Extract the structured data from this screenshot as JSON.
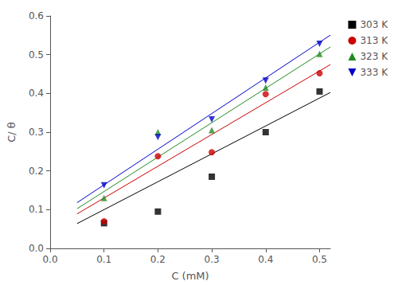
{
  "chart_data": {
    "type": "scatter",
    "xlabel": "C (mM)",
    "ylabel": "C/ θ",
    "xlim": [
      0.0,
      0.52
    ],
    "ylim": [
      0.0,
      0.6
    ],
    "xticks": [
      {
        "value": 0.0,
        "label": "0.0"
      },
      0.1,
      0.2,
      0.3,
      0.4,
      0.5
    ],
    "yticks": [
      {
        "value": 0.0,
        "label": "0.0"
      },
      0.1,
      0.2,
      0.3,
      0.4,
      0.5,
      0.6
    ],
    "grid": false,
    "legend": "right",
    "series": [
      {
        "name": "303 K",
        "color": "#000000",
        "marker": "square",
        "x": [
          0.1,
          0.2,
          0.3,
          0.4,
          0.5
        ],
        "values": [
          0.065,
          0.095,
          0.185,
          0.3,
          0.405
        ],
        "fit": {
          "x": [
            0.05,
            0.52
          ],
          "values": [
            0.064,
            0.4024
          ]
        }
      },
      {
        "name": "313 K",
        "color": "#cc0000",
        "marker": "circle",
        "x": [
          0.1,
          0.2,
          0.3,
          0.4,
          0.5
        ],
        "values": [
          0.07,
          0.238,
          0.248,
          0.398,
          0.452
        ],
        "fit": {
          "x": [
            0.05,
            0.52
          ],
          "values": [
            0.089,
            0.4744
          ]
        }
      },
      {
        "name": "323 K",
        "color": "#228B22",
        "marker": "triangle",
        "x": [
          0.1,
          0.2,
          0.3,
          0.4,
          0.5
        ],
        "values": [
          0.13,
          0.3,
          0.305,
          0.415,
          0.502
        ],
        "fit": {
          "x": [
            0.05,
            0.52
          ],
          "values": [
            0.1024,
            0.51976
          ]
        }
      },
      {
        "name": "333 K",
        "color": "#0000cc",
        "marker": "triangle-down",
        "x": [
          0.1,
          0.2,
          0.3,
          0.4,
          0.5
        ],
        "values": [
          0.163,
          0.287,
          0.333,
          0.433,
          0.528
        ],
        "fit": {
          "x": [
            0.05,
            0.52
          ],
          "values": [
            0.118,
            0.5504
          ]
        }
      }
    ]
  }
}
